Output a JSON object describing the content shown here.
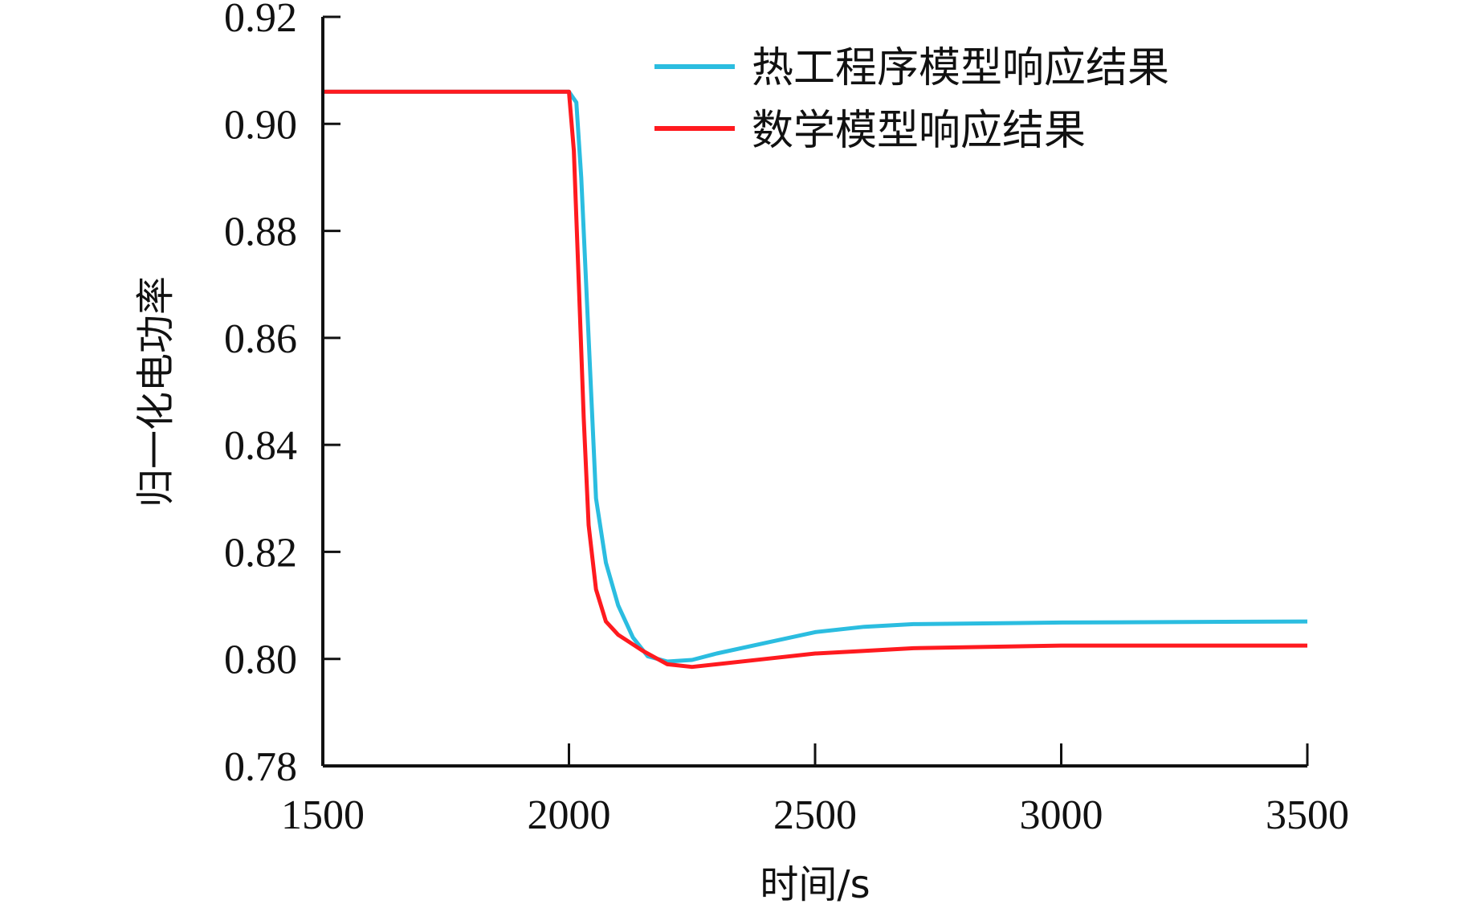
{
  "chart_data": {
    "type": "line",
    "title": "",
    "xlabel": "时间/s",
    "ylabel": "归一化电功率",
    "xlim": [
      1500,
      3500
    ],
    "ylim": [
      0.78,
      0.92
    ],
    "xticks": [
      1500,
      2000,
      2500,
      3000,
      3500
    ],
    "xtick_labels": [
      "1500",
      "2000",
      "2500",
      "3000",
      "3500"
    ],
    "yticks": [
      0.78,
      0.8,
      0.82,
      0.84,
      0.86,
      0.88,
      0.9,
      0.92
    ],
    "ytick_labels": [
      "0.78",
      "0.80",
      "0.82",
      "0.84",
      "0.86",
      "0.88",
      "0.90",
      "0.92"
    ],
    "grid": false,
    "legend_position": "top-right",
    "series": [
      {
        "name": "热工程序模型响应结果",
        "color": "#2bbde0",
        "x": [
          1500,
          2000,
          2015,
          2025,
          2040,
          2055,
          2075,
          2100,
          2130,
          2160,
          2200,
          2250,
          2300,
          2400,
          2500,
          2600,
          2700,
          3000,
          3500
        ],
        "y": [
          0.906,
          0.906,
          0.904,
          0.89,
          0.86,
          0.83,
          0.818,
          0.81,
          0.804,
          0.8005,
          0.7995,
          0.7998,
          0.801,
          0.803,
          0.805,
          0.806,
          0.8065,
          0.8068,
          0.807
        ]
      },
      {
        "name": "数学模型响应结果",
        "color": "#ff1a1f",
        "x": [
          1500,
          2000,
          2010,
          2020,
          2030,
          2040,
          2055,
          2075,
          2100,
          2150,
          2200,
          2250,
          2300,
          2400,
          2500,
          2600,
          2700,
          3000,
          3500
        ],
        "y": [
          0.906,
          0.906,
          0.895,
          0.87,
          0.845,
          0.825,
          0.813,
          0.807,
          0.8045,
          0.8015,
          0.799,
          0.7985,
          0.799,
          0.8,
          0.801,
          0.8015,
          0.802,
          0.8025,
          0.8025
        ]
      }
    ]
  }
}
